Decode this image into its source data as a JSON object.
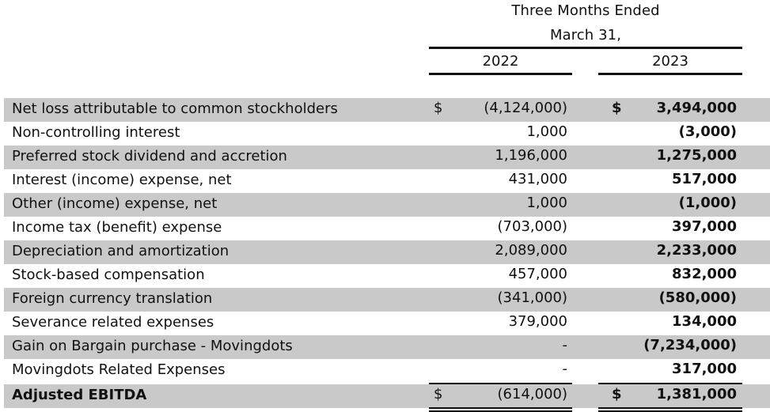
{
  "header": {
    "title_line1": "Three Months Ended",
    "title_line2": "March 31,",
    "year1": "2022",
    "year2": "2023"
  },
  "rows": [
    {
      "label": "Net loss attributable to common stockholders",
      "cur1": "$",
      "v2022": "(4,124,000)",
      "cur2": "$",
      "v2023": "3,494,000"
    },
    {
      "label": "Non-controlling interest",
      "v2022": "1,000",
      "v2023": "(3,000)"
    },
    {
      "label": "Preferred stock dividend and accretion",
      "v2022": "1,196,000",
      "v2023": "1,275,000"
    },
    {
      "label": "Interest (income) expense, net",
      "v2022": "431,000",
      "v2023": "517,000"
    },
    {
      "label": "Other (income) expense, net",
      "v2022": "1,000",
      "v2023": "(1,000)"
    },
    {
      "label": "Income tax (benefit) expense",
      "v2022": "(703,000)",
      "v2023": "397,000"
    },
    {
      "label": "Depreciation and amortization",
      "v2022": "2,089,000",
      "v2023": "2,233,000"
    },
    {
      "label": "Stock-based compensation",
      "v2022": "457,000",
      "v2023": "832,000"
    },
    {
      "label": "Foreign currency translation",
      "v2022": "(341,000)",
      "v2023": "(580,000)"
    },
    {
      "label": "Severance related expenses",
      "v2022": "379,000",
      "v2023": "134,000"
    },
    {
      "label": "Gain on Bargain purchase - Movingdots",
      "v2022": "-",
      "v2023": "(7,234,000)"
    },
    {
      "label": "Movingdots Related Expenses",
      "v2022": "-",
      "v2023": "317,000"
    }
  ],
  "total": {
    "label": "Adjusted EBITDA",
    "cur1": "$",
    "v2022": "(614,000)",
    "cur2": "$",
    "v2023": "1,381,000"
  }
}
